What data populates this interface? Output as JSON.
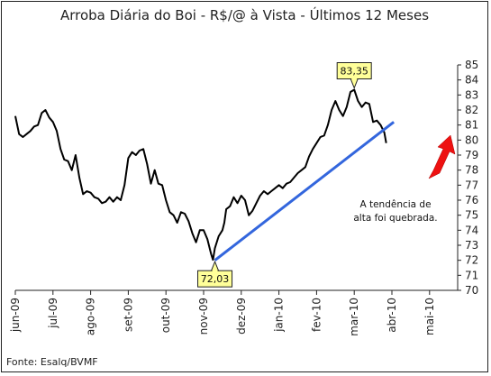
{
  "chart_data": {
    "type": "line",
    "title": "Arroba Diária do Boi - R$/@ à Vista - Últimos 12 Meses",
    "source": "Fonte: Esalq/BVMF",
    "ylim": [
      70,
      85
    ],
    "yticks": [
      "70",
      "71",
      "72",
      "73",
      "74",
      "75",
      "76",
      "77",
      "78",
      "79",
      "80",
      "81",
      "82",
      "83",
      "84",
      "85"
    ],
    "x_categories": [
      "jun-09",
      "jul-09",
      "ago-09",
      "set-09",
      "out-09",
      "nov-09",
      "dez-09",
      "jan-10",
      "fev-10",
      "mar-10",
      "abr-10",
      "mai-10"
    ],
    "grid": false,
    "series": [
      {
        "color": "#000000",
        "points": [
          [
            0.0,
            81.6
          ],
          [
            0.1,
            80.4
          ],
          [
            0.2,
            80.2
          ],
          [
            0.3,
            80.4
          ],
          [
            0.4,
            80.6
          ],
          [
            0.5,
            80.9
          ],
          [
            0.6,
            81.0
          ],
          [
            0.7,
            81.8
          ],
          [
            0.8,
            82.0
          ],
          [
            0.9,
            81.5
          ],
          [
            1.0,
            81.2
          ],
          [
            1.1,
            80.6
          ],
          [
            1.2,
            79.4
          ],
          [
            1.3,
            78.7
          ],
          [
            1.4,
            78.6
          ],
          [
            1.5,
            78.0
          ],
          [
            1.6,
            79.0
          ],
          [
            1.7,
            77.5
          ],
          [
            1.8,
            76.4
          ],
          [
            1.9,
            76.6
          ],
          [
            2.0,
            76.5
          ],
          [
            2.1,
            76.2
          ],
          [
            2.2,
            76.1
          ],
          [
            2.3,
            75.8
          ],
          [
            2.4,
            75.9
          ],
          [
            2.5,
            76.2
          ],
          [
            2.6,
            75.9
          ],
          [
            2.7,
            76.2
          ],
          [
            2.8,
            76.0
          ],
          [
            2.9,
            77.0
          ],
          [
            3.0,
            78.8
          ],
          [
            3.1,
            79.2
          ],
          [
            3.2,
            79.0
          ],
          [
            3.3,
            79.3
          ],
          [
            3.4,
            79.4
          ],
          [
            3.5,
            78.4
          ],
          [
            3.6,
            77.1
          ],
          [
            3.7,
            78.0
          ],
          [
            3.8,
            77.1
          ],
          [
            3.9,
            77.0
          ],
          [
            4.0,
            76.0
          ],
          [
            4.1,
            75.2
          ],
          [
            4.2,
            75.0
          ],
          [
            4.3,
            74.5
          ],
          [
            4.4,
            75.2
          ],
          [
            4.5,
            75.1
          ],
          [
            4.6,
            74.6
          ],
          [
            4.7,
            73.8
          ],
          [
            4.8,
            73.2
          ],
          [
            4.9,
            74.0
          ],
          [
            5.0,
            74.0
          ],
          [
            5.1,
            73.4
          ],
          [
            5.2,
            72.4
          ],
          [
            5.25,
            72.03
          ],
          [
            5.3,
            72.8
          ],
          [
            5.4,
            73.6
          ],
          [
            5.5,
            74.0
          ],
          [
            5.55,
            74.5
          ],
          [
            5.6,
            75.4
          ],
          [
            5.7,
            75.6
          ],
          [
            5.8,
            76.2
          ],
          [
            5.9,
            75.8
          ],
          [
            6.0,
            76.3
          ],
          [
            6.1,
            76.0
          ],
          [
            6.2,
            75.0
          ],
          [
            6.3,
            75.3
          ],
          [
            6.4,
            75.8
          ],
          [
            6.5,
            76.3
          ],
          [
            6.6,
            76.6
          ],
          [
            6.7,
            76.4
          ],
          [
            6.8,
            76.6
          ],
          [
            6.9,
            76.8
          ],
          [
            7.0,
            77.0
          ],
          [
            7.1,
            76.8
          ],
          [
            7.2,
            77.1
          ],
          [
            7.3,
            77.2
          ],
          [
            7.4,
            77.5
          ],
          [
            7.5,
            77.8
          ],
          [
            7.6,
            78.0
          ],
          [
            7.7,
            78.2
          ],
          [
            7.8,
            78.9
          ],
          [
            7.9,
            79.4
          ],
          [
            8.0,
            79.8
          ],
          [
            8.1,
            80.2
          ],
          [
            8.2,
            80.3
          ],
          [
            8.3,
            81.0
          ],
          [
            8.4,
            82.0
          ],
          [
            8.5,
            82.6
          ],
          [
            8.6,
            82.0
          ],
          [
            8.7,
            81.6
          ],
          [
            8.8,
            82.2
          ],
          [
            8.9,
            83.2
          ],
          [
            9.0,
            83.35
          ],
          [
            9.1,
            82.6
          ],
          [
            9.2,
            82.2
          ],
          [
            9.3,
            82.5
          ],
          [
            9.4,
            82.4
          ],
          [
            9.5,
            81.2
          ],
          [
            9.6,
            81.3
          ],
          [
            9.7,
            81.0
          ],
          [
            9.8,
            80.5
          ],
          [
            9.85,
            79.8
          ]
        ]
      },
      {
        "color": "#3366dd",
        "points": [
          [
            5.3,
            72.0
          ],
          [
            10.05,
            81.2
          ]
        ]
      }
    ],
    "callouts": [
      {
        "label": "72,03",
        "x": 5.3,
        "y": 72.03,
        "placement": "below"
      },
      {
        "label": "83,35",
        "x": 9.0,
        "y": 83.35,
        "placement": "above"
      }
    ],
    "annotation": {
      "lines": [
        "A tendência de",
        "alta foi quebrada."
      ],
      "arrow_color": "#ee1111"
    }
  }
}
